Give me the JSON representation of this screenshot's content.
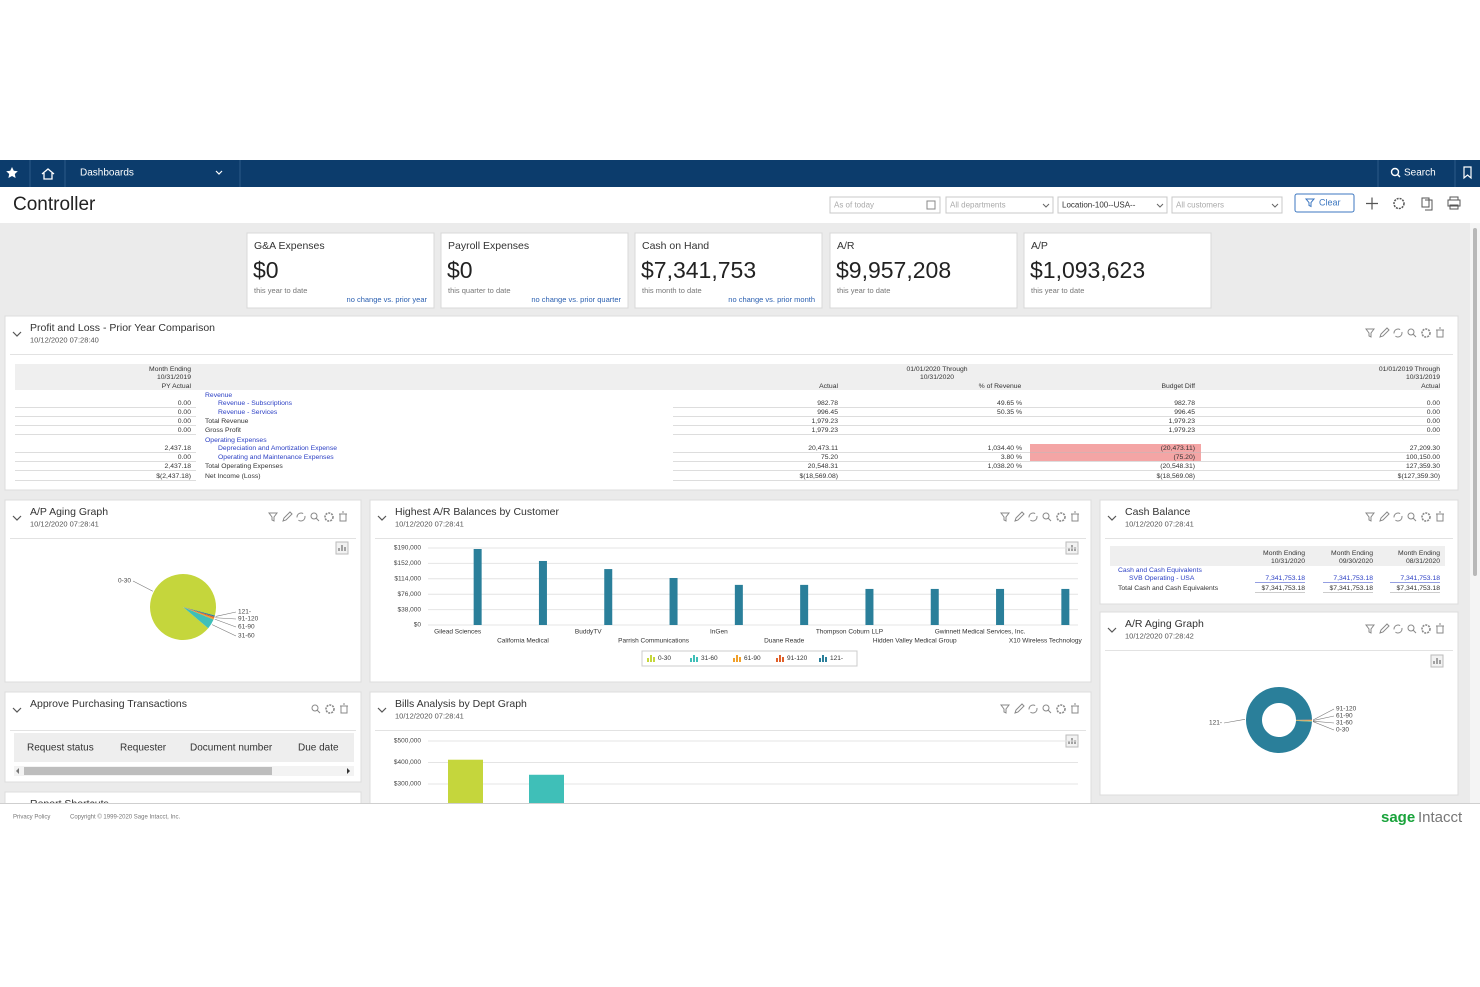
{
  "nav": {
    "menu": "Dashboards",
    "search": "Search"
  },
  "header": {
    "title": "Controller",
    "filters": [
      "As of today",
      "All departments",
      "Location-100--USA--",
      "All customers"
    ],
    "clear": "Clear"
  },
  "kpis": [
    {
      "title": "G&A Expenses",
      "value": "$0",
      "period": "this year to date",
      "change": "no change vs. prior year"
    },
    {
      "title": "Payroll Expenses",
      "value": "$0",
      "period": "this quarter to date",
      "change": "no change vs. prior quarter"
    },
    {
      "title": "Cash on Hand",
      "value": "$7,341,753",
      "period": "this month to date",
      "change": "no change vs. prior month"
    },
    {
      "title": "A/R",
      "value": "$9,957,208",
      "period": "this year to date"
    },
    {
      "title": "A/P",
      "value": "$1,093,623",
      "period": "this year to date"
    }
  ],
  "pnl": {
    "title": "Profit and Loss - Prior Year Comparison",
    "timestamp": "10/12/2020 07:28:40",
    "headers": {
      "py": [
        "Month Ending",
        "10/31/2019",
        "PY Actual"
      ],
      "current": [
        "01/01/2020 Through",
        "10/31/2020"
      ],
      "columns": [
        "Actual",
        "% of Revenue",
        "Budget Diff"
      ],
      "prior_ytd": [
        "01/01/2019 Through",
        "10/31/2019",
        "Actual"
      ]
    },
    "rows": [
      [
        null,
        "Revenue",
        null,
        null,
        null,
        null
      ],
      [
        "0.00",
        "Revenue - Subscriptions",
        "982.78",
        "49.65 %",
        "982.78",
        "0.00"
      ],
      [
        "0.00",
        "Revenue - Services",
        "996.45",
        "50.35 %",
        "996.45",
        "0.00"
      ],
      [
        "0.00",
        "Total Revenue",
        "1,979.23",
        null,
        "1,979.23",
        "0.00"
      ],
      [
        "0.00",
        "Gross Profit",
        "1,979.23",
        null,
        "1,979.23",
        "0.00"
      ],
      [
        null,
        "Operating Expenses",
        null,
        null,
        null,
        null
      ],
      [
        "2,437.18",
        "Depreciation and Amortization Expense",
        "20,473.11",
        "1,034.40 %",
        "(20,473.11)",
        "27,209.30"
      ],
      [
        "0.00",
        "Operating and Maintenance Expenses",
        "75.20",
        "3.80 %",
        "(75.20)",
        "100,150.00"
      ],
      [
        "2,437.18",
        "Total Operating Expenses",
        "20,548.31",
        "1,038.20 %",
        "(20,548.31)",
        "127,359.30"
      ],
      [
        "$(2,437.18)",
        "Net Income (Loss)",
        "$(18,569.08)",
        null,
        "$(18,569.08)",
        "$(127,359.30)"
      ]
    ]
  },
  "cash_balance": {
    "title": "Cash Balance",
    "timestamp": "10/12/2020 07:28:41",
    "headers": [
      [
        "Month Ending",
        "10/31/2020"
      ],
      [
        "Month Ending",
        "09/30/2020"
      ],
      [
        "Month Ending",
        "08/31/2020"
      ]
    ],
    "rows": [
      [
        "Cash and Cash Equivalents",
        null,
        null,
        null
      ],
      [
        "SVB Operating - USA",
        "7,341,753.18",
        "7,341,753.18",
        "7,341,753.18"
      ],
      [
        "Total Cash and Cash Equivalents",
        "$7,341,753.18",
        "$7,341,753.18",
        "$7,341,753.18"
      ]
    ]
  },
  "approvals": {
    "title": "Approve Purchasing Transactions",
    "columns": [
      "Request status",
      "Requester",
      "Document number",
      "Due date"
    ]
  },
  "shortcuts": {
    "title": "Report Shortcuts"
  },
  "footer": {
    "privacy": "Privacy Policy",
    "copyright": "Copyright © 1999-2020 Sage Intacct, Inc.",
    "brand": "sage",
    "product": "Intacct"
  },
  "chart_data": [
    {
      "type": "pie",
      "title": "A/P Aging Graph",
      "subtitle": "10/12/2020 07:28:41",
      "categories": [
        "0-30",
        "31-60",
        "61-90",
        "91-120",
        "121-"
      ],
      "values": [
        93,
        5,
        0.7,
        0.7,
        0.6
      ],
      "colors": [
        "#c5d63c",
        "#3fbfb8",
        "#f0a02a",
        "#e0602a",
        "#2a7f9a"
      ]
    },
    {
      "type": "bar",
      "title": "Highest A/R Balances by Customer",
      "subtitle": "10/12/2020 07:28:41",
      "categories": [
        "Gilead Sciences",
        "California Medical",
        "BuddyTV",
        "Parrish Communications",
        "InGen",
        "Duane Reade",
        "Thompson Coburn LLP",
        "Hidden Valley Medical Group",
        "Gwinnett Medical Services, Inc.",
        "X10 Wireless Technology"
      ],
      "series": [
        {
          "name": "0-30",
          "color": "#c5d63c",
          "values": [
            0,
            0,
            0,
            0,
            0,
            0,
            0,
            0,
            0,
            0
          ]
        },
        {
          "name": "31-60",
          "color": "#3fbfb8",
          "values": [
            0,
            0,
            0,
            0,
            0,
            0,
            0,
            0,
            0,
            0
          ]
        },
        {
          "name": "61-90",
          "color": "#f0a02a",
          "values": [
            0,
            0,
            0,
            0,
            0,
            0,
            0,
            0,
            0,
            0
          ]
        },
        {
          "name": "91-120",
          "color": "#e0602a",
          "values": [
            0,
            0,
            0,
            0,
            0,
            0,
            0,
            0,
            0,
            0
          ]
        },
        {
          "name": "121-",
          "color": "#2a7f9a",
          "values": [
            187500,
            158000,
            138000,
            116000,
            99000,
            99000,
            89000,
            89000,
            89000,
            89000
          ]
        }
      ],
      "ylim": [
        0,
        190000
      ],
      "yticks": [
        {
          "value": 0,
          "label": "$0"
        },
        {
          "value": 38000,
          "label": "$38,000"
        },
        {
          "value": 76000,
          "label": "$76,000"
        },
        {
          "value": 114000,
          "label": "$114,000"
        },
        {
          "value": 152000,
          "label": "$152,000"
        },
        {
          "value": 190000,
          "label": "$190,000"
        }
      ],
      "grid": true,
      "legend": "bottom"
    },
    {
      "type": "donut",
      "title": "A/R Aging Graph",
      "subtitle": "10/12/2020 07:28:42",
      "categories": [
        "0-30",
        "31-60",
        "61-90",
        "91-120",
        "121-"
      ],
      "values": [
        0.2,
        0.2,
        0.3,
        0.3,
        99
      ],
      "colors": [
        "#c5d63c",
        "#3fbfb8",
        "#f0a02a",
        "#e0602a",
        "#2a7f9a"
      ]
    },
    {
      "type": "bar",
      "title": "Bills Analysis by Dept Graph",
      "subtitle": "10/12/2020 07:28:41",
      "categories": [
        null,
        null
      ],
      "values": [
        413000,
        343000
      ],
      "colors": [
        "#c5d63c",
        "#3fbfb8"
      ],
      "ylim": [
        0,
        500000
      ],
      "yticks": [
        {
          "value": 300000,
          "label": "$300,000"
        },
        {
          "value": 400000,
          "label": "$400,000"
        },
        {
          "value": 500000,
          "label": "$500,000"
        }
      ],
      "grid": true
    }
  ]
}
